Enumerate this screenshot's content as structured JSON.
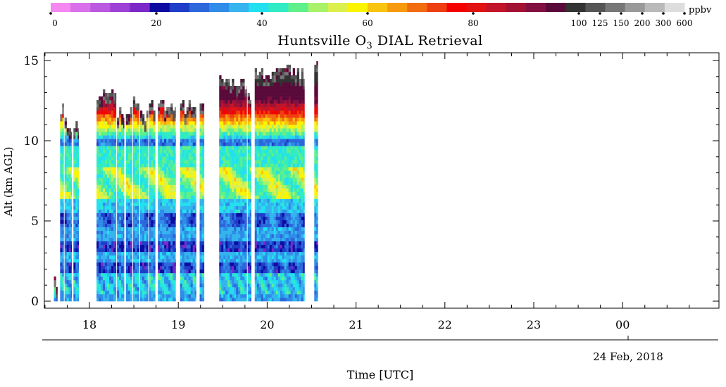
{
  "chart_data": {
    "type": "heatmap",
    "title_main": "Huntsville O",
    "title_sub": "3",
    "title_rest": " DIAL Retrieval",
    "xlabel": "Time [UTC]",
    "ylabel": "Alt (km AGL)",
    "date_label": "24 Feb, 2018",
    "colorbar": {
      "unit": "ppbv",
      "tick_labels": [
        "0",
        "20",
        "40",
        "60",
        "80",
        "100",
        "125",
        "150",
        "200",
        "300",
        "600"
      ],
      "colors": [
        "#f587f0",
        "#d970ea",
        "#bb58e0",
        "#9c40d6",
        "#7c28c8",
        "#0c0ca0",
        "#1e3dc8",
        "#2d67dc",
        "#2f8ce8",
        "#35b4ee",
        "#22e0f0",
        "#30ebc4",
        "#5ef08a",
        "#a8f26a",
        "#dbf04c",
        "#fbf500",
        "#f9c410",
        "#f89a0e",
        "#f26c10",
        "#ef3e10",
        "#f50000",
        "#e01212",
        "#c2142a",
        "#a31232",
        "#821040",
        "#5a0a3a",
        "#333333",
        "#555555",
        "#777777",
        "#999999",
        "#b9b9b9",
        "#dddddd"
      ]
    },
    "x_ticks": [
      "18",
      "19",
      "20",
      "21",
      "22",
      "23",
      "00"
    ],
    "y_ticks": [
      "0",
      "5",
      "10",
      "15"
    ],
    "ylim": [
      0,
      15
    ],
    "profiles": [
      {
        "start": 17.6,
        "end": 17.64,
        "top": 1.4
      },
      {
        "start": 17.67,
        "end": 17.71,
        "top": 12.2
      },
      {
        "start": 17.72,
        "end": 17.8,
        "top": 11.4
      },
      {
        "start": 17.82,
        "end": 17.88,
        "top": 11.2
      },
      {
        "start": 18.08,
        "end": 18.3,
        "top": 13.2
      },
      {
        "start": 18.31,
        "end": 18.39,
        "top": 12.2
      },
      {
        "start": 18.41,
        "end": 18.48,
        "top": 12.2
      },
      {
        "start": 18.49,
        "end": 18.56,
        "top": 12.6
      },
      {
        "start": 18.57,
        "end": 18.66,
        "top": 12.0
      },
      {
        "start": 18.67,
        "end": 18.74,
        "top": 12.5
      },
      {
        "start": 18.77,
        "end": 18.97,
        "top": 12.5
      },
      {
        "start": 19.02,
        "end": 19.2,
        "top": 12.4
      },
      {
        "start": 19.24,
        "end": 19.29,
        "top": 12.5
      },
      {
        "start": 19.46,
        "end": 19.77,
        "top": 14.0
      },
      {
        "start": 19.78,
        "end": 19.82,
        "top": 13.1
      },
      {
        "start": 19.86,
        "end": 20.42,
        "top": 14.6
      },
      {
        "start": 20.53,
        "end": 20.57,
        "top": 15.0
      }
    ]
  }
}
